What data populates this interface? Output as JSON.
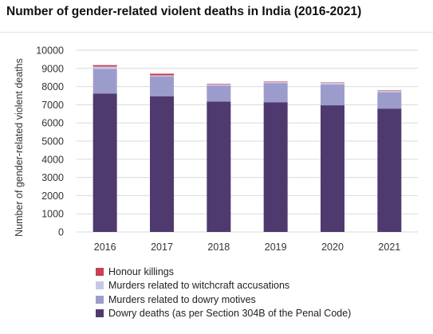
{
  "chart_data": {
    "type": "bar",
    "stacked": true,
    "title": "Number of gender-related violent deaths in India (2016-2021)",
    "xlabel": "",
    "ylabel": "Number of gender-related violent deaths",
    "ylim": [
      0,
      10000
    ],
    "yticks": [
      "0",
      "1000",
      "2000",
      "3000",
      "4000",
      "5000",
      "6000",
      "7000",
      "8000",
      "9000",
      "10000"
    ],
    "grid": true,
    "legend_position": "bottom",
    "categories": [
      "2016",
      "2017",
      "2018",
      "2019",
      "2020",
      "2021"
    ],
    "series": [
      {
        "name": "Dowry deaths (as per Section 304B of the Penal Code)",
        "color": "#4f3a6f",
        "values": [
          7620,
          7470,
          7170,
          7140,
          6970,
          6790
        ]
      },
      {
        "name": "Murders related to dowry motives",
        "color": "#9c9ccc",
        "values": [
          1350,
          1080,
          880,
          1040,
          1140,
          900
        ]
      },
      {
        "name": "Murders related to witchcraft accusations",
        "color": "#c8c8e6",
        "values": [
          130,
          70,
          70,
          80,
          90,
          70
        ]
      },
      {
        "name": "Honour killings",
        "color": "#c9404f",
        "values": [
          80,
          90,
          30,
          25,
          25,
          30
        ]
      }
    ]
  }
}
